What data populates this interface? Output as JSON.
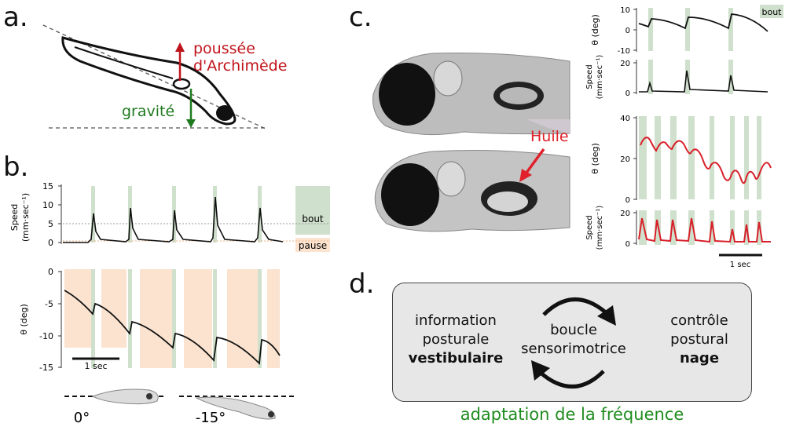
{
  "panels": {
    "a": {
      "letter": "a.",
      "buoyancy_label_1": "poussée",
      "buoyancy_label_2": "d'Archimède",
      "gravity_label": "gravité",
      "colors": {
        "buoyancy": "#c0141c",
        "gravity": "#1f7a1f"
      }
    },
    "b": {
      "letter": "b.",
      "speed_axis_title_1": "Speed",
      "speed_axis_title_2": "(mm·sec⁻¹)",
      "speed_ticks": [
        "15",
        "10",
        "5",
        "0"
      ],
      "angle_axis_title": "θ (deg)",
      "angle_ticks": [
        "0",
        "-5",
        "-10",
        "-15"
      ],
      "bout_label": "bout",
      "pause_label": "pause",
      "scale_label": "1 sec",
      "pose_labels": [
        "0°",
        "-15°"
      ],
      "colors": {
        "bout": "#cfe0cc",
        "pause": "#fbe3cf"
      }
    },
    "c": {
      "letter": "c.",
      "oil_label": "Huile",
      "top_angle_axis_title": "θ (deg)",
      "top_angle_ticks": [
        "10",
        "0",
        "-10"
      ],
      "top_speed_axis_title_1": "Speed",
      "top_speed_axis_title_2": "(mm·sec⁻¹)",
      "top_speed_ticks": [
        "20",
        "0"
      ],
      "bout_label": "bout",
      "bottom_angle_axis_title": "θ (deg)",
      "bottom_angle_ticks": [
        "40",
        "20",
        "0"
      ],
      "bottom_speed_axis_title_1": "Speed",
      "bottom_speed_axis_title_2": "(mm·sec⁻¹)",
      "bottom_speed_ticks": [
        "20",
        "0"
      ],
      "scale_label": "1 sec",
      "colors": {
        "oil": "#e0202a",
        "trace_red": "#d8202a",
        "bout": "#cfe0cc"
      }
    },
    "d": {
      "letter": "d.",
      "left_line1": "information",
      "left_line2": "posturale",
      "left_line3": "vestibulaire",
      "center_line1": "boucle",
      "center_line2": "sensorimotrice",
      "right_line1": "contrôle",
      "right_line2": "postural",
      "right_line3": "nage",
      "footer": "adaptation de la fréquence",
      "colors": {
        "footer": "#1f8c1f",
        "box": "#e6e7e6"
      }
    }
  },
  "chart_data": [
    {
      "type": "line",
      "panel": "b-speed",
      "ylabel": "Speed (mm·sec⁻¹)",
      "ylim": [
        0,
        15
      ],
      "yticks": [
        0,
        5,
        10,
        15
      ],
      "bout_peaks": [
        7.5,
        9,
        8.5,
        12,
        9
      ],
      "pause_level": 0.5,
      "threshold": 5
    },
    {
      "type": "line",
      "panel": "b-angle",
      "ylabel": "θ (deg)",
      "ylim": [
        -15,
        0
      ],
      "yticks": [
        0,
        -5,
        -10,
        -15
      ],
      "pre_bout": [
        -6.5,
        -9.5,
        -11.5,
        -13.5,
        -11.5
      ],
      "post_bout": [
        -5.5,
        -7,
        -8,
        -8.5,
        -7
      ]
    },
    {
      "type": "line",
      "panel": "c-top-angle",
      "ylabel": "θ (deg)",
      "ylim": [
        -10,
        10
      ],
      "yticks": [
        -10,
        0,
        10
      ]
    },
    {
      "type": "line",
      "panel": "c-bottom-angle",
      "ylabel": "θ (deg)",
      "ylim": [
        0,
        40
      ],
      "yticks": [
        0,
        20,
        40
      ]
    }
  ]
}
